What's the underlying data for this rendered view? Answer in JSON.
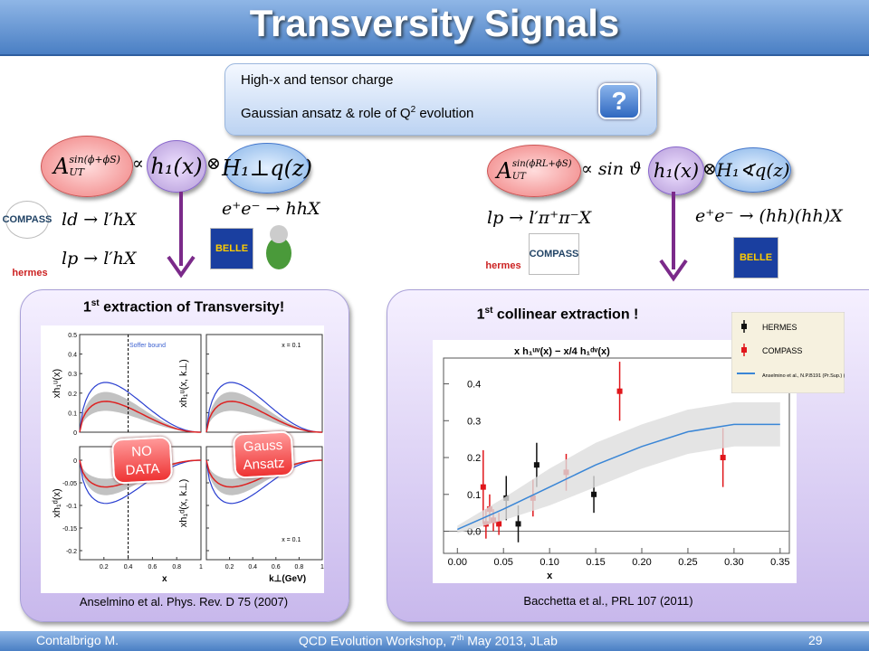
{
  "header": {
    "title": "Transversity Signals"
  },
  "topics": {
    "items": [
      {
        "text": "High-x and tensor charge"
      },
      {
        "text": "Gaussian ansatz & role of Q",
        "sup": "2",
        "after": " evolution"
      }
    ],
    "button": "?"
  },
  "left": {
    "formula": {
      "A": "A",
      "sup": "sin(ϕ+ϕS)",
      "sub": "UT",
      "prop": "∝",
      "h": "h₁(x)",
      "op": "⊗",
      "H": "H₁⊥q(z)"
    },
    "reactions": [
      "ld → l′hX",
      "lp → l′hX",
      "e⁺e⁻ → hhX"
    ],
    "logos": [
      "COMPASS",
      "hermes",
      "BELLE"
    ],
    "panel": {
      "title": {
        "ordinal": "1",
        "sup": "st",
        "text": " extraction of Transversity!"
      },
      "plots": [
        {
          "ylabel": "xh₁ᵘ(x)",
          "ylim": [
            0,
            0.5
          ],
          "yticks": [
            0,
            0.1,
            0.2,
            0.3,
            0.4,
            0.5
          ],
          "note": "Soffer bound",
          "sign": 1
        },
        {
          "ylabel": "xh₁ᵘ(x, k⊥)",
          "ylim": [
            0,
            0.5
          ],
          "yticks": [
            0,
            0.1,
            0.2,
            0.3,
            0.4,
            0.5
          ],
          "note": "x = 0.1",
          "sign": 1
        },
        {
          "ylabel": "xh₁ᵈ(x)",
          "ylim": [
            -0.22,
            0.03
          ],
          "yticks": [
            0,
            -0.05,
            -0.1,
            -0.15,
            -0.2
          ],
          "xlim": [
            0,
            1
          ],
          "xticks": [
            0.2,
            0.4,
            0.6,
            0.8,
            1
          ],
          "xlabel": "x",
          "sign": -1
        },
        {
          "ylabel": "xh₁ᵈ(x, k⊥)",
          "ylim": [
            -0.22,
            0.03
          ],
          "yticks": [
            0,
            -0.05,
            -0.1,
            -0.15,
            -0.2
          ],
          "xlim": [
            0,
            1
          ],
          "xticks": [
            0.2,
            0.4,
            0.6,
            0.8,
            1
          ],
          "xlabel": "k⊥(GeV)",
          "note": "x = 0.1",
          "sign": -1
        }
      ],
      "bubbles": [
        [
          "NO",
          "DATA"
        ],
        [
          "Gauss",
          "Ansatz"
        ]
      ],
      "caption": "Anselmino et al. Phys. Rev. D 75 (2007)"
    }
  },
  "right": {
    "formula": {
      "A": "A",
      "sup": "sin(ϕRL+ϕS)",
      "sub": "UT",
      "prop": "∝ sin ϑ",
      "h": "h₁(x)",
      "op": "⊗",
      "H": "H₁∢q(z)"
    },
    "reactions": [
      "lp → l′π⁺π⁻X",
      "e⁺e⁻ → (hh)(hh)X"
    ],
    "logos": [
      "hermes",
      "COMPASS",
      "BELLE"
    ],
    "panel": {
      "title": {
        "ordinal": "1",
        "sup": "st",
        "text": " collinear extraction !"
      },
      "plot": {
        "title": "x h₁ᵘᵛ(x) − x/4 h₁ᵈᵛ(x)",
        "xlabel": "x",
        "xlim": [
          -0.015,
          0.36
        ],
        "ylim": [
          -0.06,
          0.47
        ],
        "xticks": [
          {
            "value": 0,
            "label": "0.00"
          },
          {
            "value": 0.05,
            "label": "0.05"
          },
          {
            "value": 0.1,
            "label": "0.10"
          },
          {
            "value": 0.15,
            "label": "0.15"
          },
          {
            "value": 0.2,
            "label": "0.20"
          },
          {
            "value": 0.25,
            "label": "0.25"
          },
          {
            "value": 0.3,
            "label": "0.30"
          },
          {
            "value": 0.35,
            "label": "0.35"
          }
        ],
        "yticks": [
          {
            "value": 0,
            "label": "0.0"
          },
          0.1,
          0.2,
          0.3,
          0.4
        ],
        "series": [
          {
            "name": "HERMES",
            "color": "#111111",
            "x": [
              0.053,
              0.066,
              0.086,
              0.148
            ],
            "y": [
              0.09,
              0.02,
              0.18,
              0.1
            ],
            "err": [
              0.06,
              0.05,
              0.06,
              0.05
            ]
          },
          {
            "name": "COMPASS",
            "color": "#e0161b",
            "x": [
              0.028,
              0.031,
              0.035,
              0.039,
              0.045,
              0.082,
              0.118,
              0.176,
              0.288
            ],
            "y": [
              0.12,
              0.02,
              0.06,
              0.03,
              0.02,
              0.09,
              0.16,
              0.38,
              0.2
            ],
            "err": [
              0.1,
              0.04,
              0.04,
              0.03,
              0.03,
              0.05,
              0.05,
              0.08,
              0.08
            ]
          },
          {
            "name": "Anselmino et al., N.P.B191 (Pr.Sup.) (09)",
            "color": "#3a86d6",
            "x": [
              0,
              0.05,
              0.1,
              0.15,
              0.2,
              0.25,
              0.3,
              0.35
            ],
            "y": [
              0.005,
              0.06,
              0.12,
              0.18,
              0.23,
              0.27,
              0.29,
              0.29
            ],
            "band": [
              0.01,
              0.03,
              0.05,
              0.06,
              0.06,
              0.06,
              0.06,
              0.06
            ]
          }
        ]
      },
      "caption": "Bacchetta et al., PRL 107 (2011)"
    }
  },
  "footer": {
    "author": "Contalbrigo M.",
    "event": {
      "pre": "QCD Evolution Workshop, 7",
      "sup": "th",
      "post": " May 2013, JLab"
    },
    "page": "29"
  }
}
